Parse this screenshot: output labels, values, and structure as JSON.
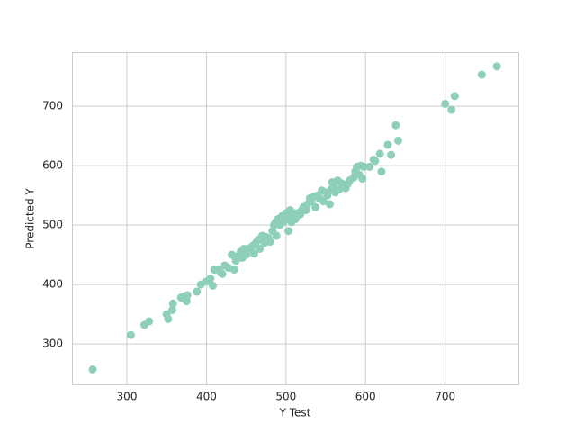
{
  "chart_data": {
    "type": "scatter",
    "xlabel": "Y Test",
    "ylabel": "Predicted Y",
    "color": "#8dcfb9",
    "grid": true,
    "xlim": [
      231,
      792
    ],
    "ylim": [
      232,
      791
    ],
    "xticks": [
      300,
      400,
      500,
      600,
      700
    ],
    "yticks": [
      300,
      400,
      500,
      600,
      700
    ],
    "x": [
      257,
      305,
      322,
      328,
      350,
      352,
      357,
      358,
      368,
      372,
      375,
      376,
      388,
      393,
      400,
      405,
      408,
      410,
      415,
      418,
      420,
      423,
      428,
      432,
      435,
      437,
      440,
      443,
      445,
      447,
      450,
      452,
      455,
      458,
      460,
      462,
      465,
      467,
      470,
      473,
      475,
      478,
      480,
      483,
      485,
      487,
      488,
      490,
      492,
      495,
      497,
      500,
      502,
      503,
      505,
      507,
      508,
      510,
      512,
      515,
      518,
      520,
      522,
      525,
      527,
      530,
      532,
      535,
      537,
      540,
      542,
      545,
      547,
      550,
      552,
      555,
      557,
      558,
      560,
      562,
      565,
      567,
      570,
      572,
      575,
      578,
      580,
      585,
      587,
      589,
      592,
      594,
      596,
      598,
      605,
      610,
      612,
      618,
      620,
      628,
      632,
      638,
      641,
      700,
      708,
      712,
      746,
      765
    ],
    "values": [
      257,
      315,
      332,
      338,
      350,
      342,
      357,
      368,
      378,
      380,
      372,
      382,
      388,
      400,
      405,
      410,
      398,
      425,
      425,
      420,
      418,
      432,
      428,
      450,
      425,
      440,
      448,
      455,
      445,
      460,
      450,
      460,
      458,
      465,
      452,
      470,
      475,
      460,
      482,
      470,
      480,
      478,
      472,
      490,
      500,
      505,
      482,
      510,
      500,
      515,
      505,
      520,
      510,
      490,
      525,
      505,
      515,
      520,
      510,
      520,
      518,
      525,
      530,
      525,
      535,
      545,
      540,
      548,
      530,
      550,
      545,
      558,
      540,
      555,
      550,
      535,
      560,
      572,
      565,
      555,
      575,
      560,
      570,
      565,
      562,
      570,
      575,
      580,
      590,
      598,
      585,
      600,
      578,
      598,
      598,
      610,
      608,
      620,
      590,
      635,
      618,
      668,
      642,
      704,
      694,
      717,
      753,
      767
    ]
  }
}
